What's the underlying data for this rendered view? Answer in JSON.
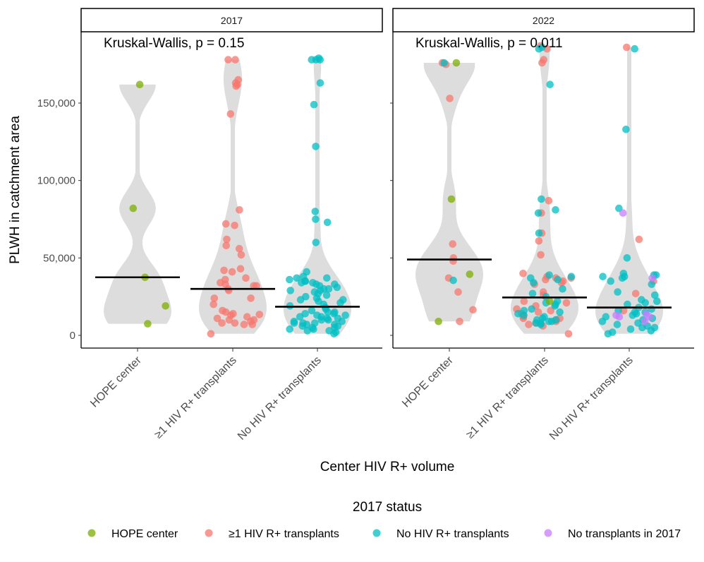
{
  "chart_data": {
    "type": "scatter",
    "subtype": "faceted jitter + violin with median lines",
    "ylabel": "PLWH in catchment area",
    "xlabel": "Center HIV R+ volume",
    "categories": [
      "HOPE center",
      "≥1 HIV R+ transplants",
      "No HIV R+ transplants"
    ],
    "ylim": [
      -5000,
      190000
    ],
    "y_ticks": [
      0,
      50000,
      100000,
      150000
    ],
    "y_tick_labels": [
      "0",
      "50,000",
      "100,000",
      "150,000"
    ],
    "grid": false,
    "legend": {
      "title": "2017 status",
      "position": "bottom",
      "entries": [
        {
          "label": "HOPE center",
          "color": "#7CAE00"
        },
        {
          "label": "≥1 HIV R+ transplants",
          "color": "#F8766D"
        },
        {
          "label": "No HIV R+ transplants",
          "color": "#00BFC4"
        },
        {
          "label": "No transplants in 2017",
          "color": "#C77CFF"
        }
      ]
    },
    "facets": [
      {
        "label": "2017",
        "annotation": "Kruskal-Wallis, p = 0.15",
        "medians": [
          37500,
          30000,
          18500
        ],
        "groups": [
          {
            "category": "HOPE center",
            "points": [
              {
                "status": "HOPE center",
                "values": [
                  162000,
                  82000,
                  37500,
                  19000,
                  7500
                ]
              }
            ]
          },
          {
            "category": "≥1 HIV R+ transplants",
            "points": [
              {
                "status": "≥1 HIV R+ transplants",
                "values": [
                  178000,
                  178000,
                  165000,
                  163000,
                  162000,
                  161000,
                  143000,
                  81000,
                  72000,
                  71000,
                  62000,
                  58000,
                  56000,
                  52000,
                  43000,
                  42000,
                  41000,
                  37000,
                  36000,
                  34000,
                  33000,
                  32000,
                  32000,
                  30000,
                  29000,
                  24000,
                  24000,
                  20000,
                  16000,
                  15000,
                  14000,
                  13500,
                  13000,
                  12000,
                  11000,
                  10000,
                  10000,
                  9000,
                  8000,
                  8000,
                  7000,
                  7000,
                  1000
                ]
              }
            ]
          },
          {
            "category": "No HIV R+ transplants",
            "points": [
              {
                "status": "No HIV R+ transplants",
                "values": [
                  179000,
                  178000,
                  178000,
                  178000,
                  163000,
                  149000,
                  122000,
                  80000,
                  75000,
                  73000,
                  60000,
                  41000,
                  38000,
                  37000,
                  37000,
                  36000,
                  35000,
                  35000,
                  34000,
                  34000,
                  33000,
                  33000,
                  32000,
                  31000,
                  30000,
                  30000,
                  29000,
                  29000,
                  28000,
                  27000,
                  26000,
                  25000,
                  24000,
                  23000,
                  23000,
                  22000,
                  21000,
                  20000,
                  19000,
                  18000,
                  17000,
                  16000,
                  15000,
                  15000,
                  14000,
                  14000,
                  13000,
                  13000,
                  12000,
                  12000,
                  11000,
                  11000,
                  10000,
                  10000,
                  9000,
                  9000,
                  8000,
                  8000,
                  8000,
                  7000,
                  7000,
                  6000,
                  6000,
                  5000,
                  5000,
                  4000,
                  4000,
                  3000,
                  3000,
                  2000,
                  1000
                ]
              }
            ]
          }
        ]
      },
      {
        "label": "2022",
        "annotation": "Kruskal-Wallis, p = 0.011",
        "medians": [
          49000,
          24500,
          18000
        ],
        "groups": [
          {
            "category": "HOPE center",
            "points": [
              {
                "status": "HOPE center",
                "values": [
                  176000,
                  88000,
                  39500,
                  9000
                ]
              },
              {
                "status": "≥1 HIV R+ transplants",
                "values": [
                  176000,
                  175000,
                  153000,
                  59000,
                  50000,
                  48000,
                  37000,
                  28000,
                  16500,
                  9000
                ]
              },
              {
                "status": "No HIV R+ transplants",
                "values": [
                  176000,
                  35500
                ]
              }
            ]
          },
          {
            "category": "≥1 HIV R+ transplants",
            "points": [
              {
                "status": "≥1 HIV R+ transplants",
                "values": [
                  187000,
                  185000,
                  178000,
                  176000,
                  87000,
                  79000,
                  66000,
                  61000,
                  52000,
                  40000,
                  38000,
                  37000,
                  37000,
                  36000,
                  35000,
                  34000,
                  33000,
                  28000,
                  26000,
                  22000,
                  21000,
                  19000,
                  17000,
                  16000,
                  15000,
                  14000,
                  13000,
                  12000,
                  11000,
                  11000,
                  10000,
                  9000,
                  8000,
                  7000,
                  6000,
                  1000
                ]
              },
              {
                "status": "No HIV R+ transplants",
                "values": [
                  186000,
                  185000,
                  162000,
                  88000,
                  81000,
                  79000,
                  66000,
                  39000,
                  38000,
                  37000,
                  36000,
                  34000,
                  30000,
                  27000,
                  25000,
                  22000,
                  21000,
                  20000,
                  19000,
                  17000,
                  16000,
                  15000,
                  14000,
                  13000,
                  12000,
                  11000,
                  10000,
                  10000,
                  9000,
                  9000,
                  8000,
                  8000,
                  7000
                ]
              },
              {
                "status": "HOPE center",
                "values": [
                  22000
                ]
              }
            ]
          },
          {
            "category": "No HIV R+ transplants",
            "points": [
              {
                "status": "≥1 HIV R+ transplants",
                "values": [
                  186000,
                  62000,
                  35000,
                  27000,
                  16000
                ]
              },
              {
                "status": "No HIV R+ transplants",
                "values": [
                  185000,
                  133000,
                  82000,
                  50000,
                  40000,
                  39000,
                  39000,
                  38000,
                  38000,
                  37000,
                  35000,
                  33000,
                  28000,
                  26000,
                  23000,
                  22000,
                  21000,
                  20000,
                  18000,
                  17000,
                  16000,
                  15000,
                  15000,
                  14000,
                  13000,
                  12000,
                  11000,
                  10000,
                  9000,
                  8000,
                  7000,
                  6000,
                  5000,
                  5000,
                  4000,
                  3000,
                  2000,
                  1000
                ]
              },
              {
                "status": "No transplants in 2017",
                "values": [
                  79000,
                  37000,
                  14000,
                  13000,
                  12000,
                  12000,
                  9000
                ]
              }
            ]
          }
        ]
      }
    ]
  }
}
